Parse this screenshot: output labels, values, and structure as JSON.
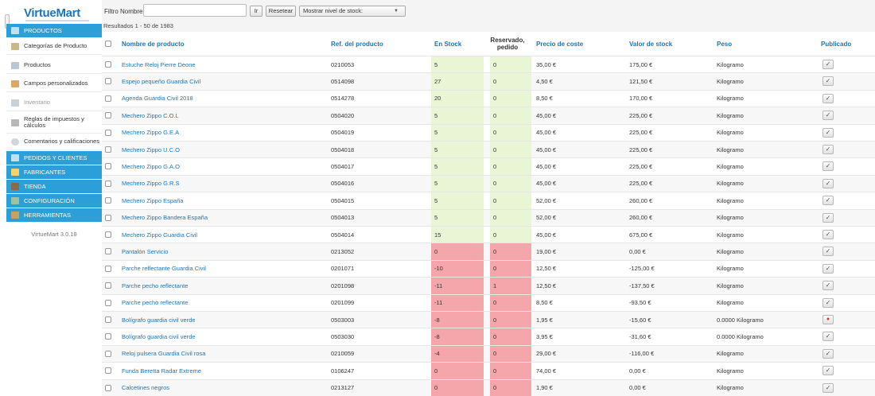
{
  "brand": {
    "name": "VirtueMart",
    "version": "VirtueMart 3.0.18"
  },
  "sidebar": {
    "sections": [
      {
        "label": "PRODUCTOS",
        "icon": "box-icon"
      },
      {
        "label": "PEDIDOS Y CLIENTES",
        "icon": "orders-icon"
      },
      {
        "label": "FABRICANTES",
        "icon": "wrench-icon"
      },
      {
        "label": "TIENDA",
        "icon": "store-icon"
      },
      {
        "label": "CONFIGURACIÓN",
        "icon": "config-icon"
      },
      {
        "label": "HERRAMIENTAS",
        "icon": "tools-icon"
      }
    ],
    "items": [
      {
        "label": "Categorías de Producto",
        "icon": "category-icon"
      },
      {
        "label": "Productos",
        "icon": "products-icon"
      },
      {
        "label": "Campos personalizados",
        "icon": "custom-fields-icon"
      },
      {
        "label": "Inventario",
        "icon": "inventory-icon"
      },
      {
        "label": "Reglas de impuestos y cálculos",
        "icon": "tax-icon"
      },
      {
        "label": "Comentarios y calificaciones",
        "icon": "comments-icon"
      }
    ]
  },
  "toolbar": {
    "filter_label": "Filtro Nombre:",
    "filter_value": "",
    "go_label": "Ir",
    "reset_label": "Resetear",
    "stock_select": "Mostrar nivel de stock:",
    "results": "Resultados 1 - 50 de 1983"
  },
  "table": {
    "headers": {
      "name": "Nombre de producto",
      "sku": "Ref. del producto",
      "stock": "En Stock",
      "reserved": "Reservado, pedido",
      "cost": "Precio de coste",
      "stock_value": "Valor de stock",
      "weight": "Peso",
      "published": "Publicado"
    },
    "rows": [
      {
        "name": "Estuche Reloj Pierre Deone",
        "sku": "0210053",
        "stock": "5",
        "reserved": "0",
        "cost": "35,00 €",
        "value": "175,00 €",
        "weight": "Kilogramo",
        "published": true,
        "status": "ok"
      },
      {
        "name": "Espejo pequeño Guardia Civil",
        "sku": "0514098",
        "stock": "27",
        "reserved": "0",
        "cost": "4,50 €",
        "value": "121,50 €",
        "weight": "Kilogramo",
        "published": true,
        "status": "ok"
      },
      {
        "name": "Agenda Guardia Civil 2018",
        "sku": "0514278",
        "stock": "20",
        "reserved": "0",
        "cost": "8,50 €",
        "value": "170,00 €",
        "weight": "Kilogramo",
        "published": true,
        "status": "ok"
      },
      {
        "name": "Mechero Zippo C.O.L",
        "sku": "0504020",
        "stock": "5",
        "reserved": "0",
        "cost": "45,00 €",
        "value": "225,00 €",
        "weight": "Kilogramo",
        "published": true,
        "status": "ok"
      },
      {
        "name": "Mechero Zippo G.E.A",
        "sku": "0504019",
        "stock": "5",
        "reserved": "0",
        "cost": "45,00 €",
        "value": "225,00 €",
        "weight": "Kilogramo",
        "published": true,
        "status": "ok"
      },
      {
        "name": "Mechero Zippo U.C.O",
        "sku": "0504018",
        "stock": "5",
        "reserved": "0",
        "cost": "45,00 €",
        "value": "225,00 €",
        "weight": "Kilogramo",
        "published": true,
        "status": "ok"
      },
      {
        "name": "Mechero Zippo G.A.O",
        "sku": "0504017",
        "stock": "5",
        "reserved": "0",
        "cost": "45,00 €",
        "value": "225,00 €",
        "weight": "Kilogramo",
        "published": true,
        "status": "ok"
      },
      {
        "name": "Mechero Zippo G.R.S",
        "sku": "0504016",
        "stock": "5",
        "reserved": "0",
        "cost": "45,00 €",
        "value": "225,00 €",
        "weight": "Kilogramo",
        "published": true,
        "status": "ok"
      },
      {
        "name": "Mechero Zippo España",
        "sku": "0504015",
        "stock": "5",
        "reserved": "0",
        "cost": "52,00 €",
        "value": "260,00 €",
        "weight": "Kilogramo",
        "published": true,
        "status": "ok"
      },
      {
        "name": "Mechero Zippo Bandera España",
        "sku": "0504013",
        "stock": "5",
        "reserved": "0",
        "cost": "52,00 €",
        "value": "260,00 €",
        "weight": "Kilogramo",
        "published": true,
        "status": "ok"
      },
      {
        "name": "Mechero Zippo Guardia Civil",
        "sku": "0504014",
        "stock": "15",
        "reserved": "0",
        "cost": "45,00 €",
        "value": "675,00 €",
        "weight": "Kilogramo",
        "published": true,
        "status": "ok"
      },
      {
        "name": "Pantalón Servicio",
        "sku": "0213052",
        "stock": "0",
        "reserved": "0",
        "cost": "19,00 €",
        "value": "0,00 €",
        "weight": "Kilogramo",
        "published": true,
        "status": "bad"
      },
      {
        "name": "Parche reflectante Guardia Civil",
        "sku": "0201071",
        "stock": "-10",
        "reserved": "0",
        "cost": "12,50 €",
        "value": "-125,00 €",
        "weight": "Kilogramo",
        "published": true,
        "status": "bad"
      },
      {
        "name": "Parche pecho reflectante",
        "sku": "0201098",
        "stock": "-11",
        "reserved": "1",
        "cost": "12,50 €",
        "value": "-137,50 €",
        "weight": "Kilogramo",
        "published": true,
        "status": "bad"
      },
      {
        "name": "Parche pecho reflectante",
        "sku": "0201099",
        "stock": "-11",
        "reserved": "0",
        "cost": "8,50 €",
        "value": "-93,50 €",
        "weight": "Kilogramo",
        "published": true,
        "status": "bad"
      },
      {
        "name": "Bolígrafo guardia civil verde",
        "sku": "0503003",
        "stock": "-8",
        "reserved": "0",
        "cost": "1,95 €",
        "value": "-15,60 €",
        "weight": "0.0000 Kilogramo",
        "published": false,
        "status": "bad"
      },
      {
        "name": "Bolígrafo guardia civil verde",
        "sku": "0503030",
        "stock": "-8",
        "reserved": "0",
        "cost": "3,95 €",
        "value": "-31,60 €",
        "weight": "0.0000 Kilogramo",
        "published": true,
        "status": "bad"
      },
      {
        "name": "Reloj pulsera Guardia Civil rosa",
        "sku": "0210059",
        "stock": "-4",
        "reserved": "0",
        "cost": "29,00 €",
        "value": "-116,00 €",
        "weight": "Kilogramo",
        "published": true,
        "status": "bad"
      },
      {
        "name": "Funda Beretta Radar Extreme",
        "sku": "0106247",
        "stock": "0",
        "reserved": "0",
        "cost": "74,00 €",
        "value": "0,00 €",
        "weight": "Kilogramo",
        "published": true,
        "status": "bad"
      },
      {
        "name": "Calcetines negros",
        "sku": "0213127",
        "stock": "0",
        "reserved": "0",
        "cost": "1,90 €",
        "value": "0,00 €",
        "weight": "Kilogramo",
        "published": true,
        "status": "bad"
      }
    ]
  },
  "colors": {
    "accent": "#2a9fd8",
    "link": "#1d74b8",
    "stock_ok": "#eaf5d6",
    "stock_bad": "#f4a6ab"
  }
}
